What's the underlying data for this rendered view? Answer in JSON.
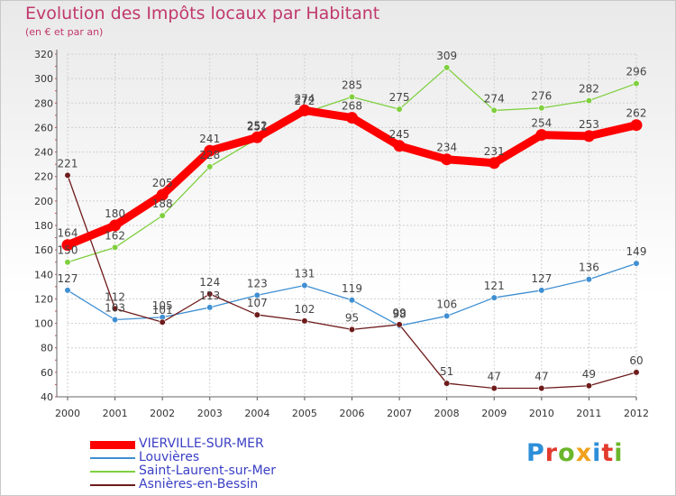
{
  "title": "Evolution des Impôts locaux par Habitant",
  "subtitle": "(en € et par an)",
  "logo": {
    "letters": [
      {
        "ch": "P",
        "color": "#2d8fd9"
      },
      {
        "ch": "r",
        "color": "#e23b2e"
      },
      {
        "ch": "o",
        "color": "#6bb62b"
      },
      {
        "ch": "x",
        "color": "#f0a21c"
      },
      {
        "ch": "i",
        "color": "#2d8fd9"
      },
      {
        "ch": "t",
        "color": "#e23b2e"
      },
      {
        "ch": "i",
        "color": "#6bb62b"
      }
    ]
  },
  "chart_data": {
    "type": "line",
    "title": "Evolution des Impôts locaux par Habitant",
    "subtitle": "(en € et par an)",
    "xlabel": "",
    "ylabel": "",
    "x": [
      "2000",
      "2001",
      "2002",
      "2003",
      "2004",
      "2005",
      "2006",
      "2007",
      "2008",
      "2009",
      "2010",
      "2011",
      "2012"
    ],
    "ylim": [
      40,
      320
    ],
    "yticks": [
      40,
      60,
      80,
      100,
      120,
      140,
      160,
      180,
      200,
      220,
      240,
      260,
      280,
      300,
      320
    ],
    "grid": true,
    "legend": "bottom-left",
    "series": [
      {
        "name": "Saint-Laurent-sur-Mer",
        "color": "#7fcf3f",
        "values": [
          150,
          162,
          188,
          228,
          251,
          272,
          285,
          275,
          309,
          274,
          276,
          282,
          296
        ]
      },
      {
        "name": "Louvières",
        "color": "#3f8fd2",
        "values": [
          127,
          103,
          105,
          113,
          123,
          131,
          119,
          98,
          106,
          121,
          127,
          136,
          149
        ]
      },
      {
        "name": "Asnières-en-Bessin",
        "color": "#6e1b1b",
        "values": [
          221,
          112,
          101,
          124,
          107,
          102,
          95,
          99,
          51,
          47,
          47,
          49,
          60
        ]
      },
      {
        "name": "VIERVILLE-SUR-MER",
        "color": "#ff0000",
        "values": [
          164,
          180,
          205,
          241,
          252,
          274,
          268,
          245,
          234,
          231,
          254,
          253,
          262
        ],
        "bold": true
      }
    ],
    "legend_order": [
      "VIERVILLE-SUR-MER",
      "Louvières",
      "Saint-Laurent-sur-Mer",
      "Asnières-en-Bessin"
    ]
  }
}
